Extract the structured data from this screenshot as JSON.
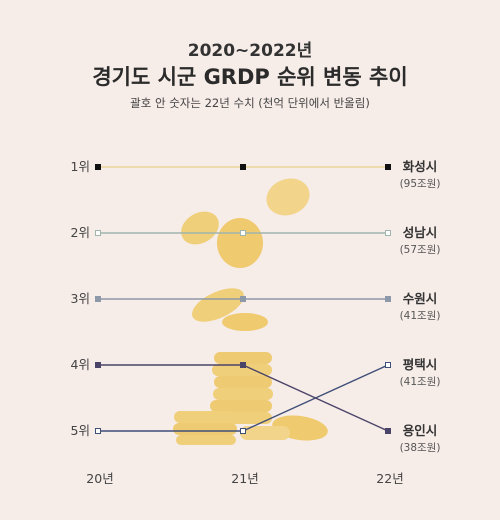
{
  "header": {
    "period": "2020~2022년",
    "title": "경기도 시군 GRDP 순위 변동 추이",
    "note": "괄호 안 숫자는 22년 수치 (천억 단위에서 반올림)"
  },
  "colors": {
    "background": "#f6ece8",
    "coin": "#f0cf7a"
  },
  "chart_data": {
    "type": "line",
    "x": [
      "20년",
      "21년",
      "22년"
    ],
    "y_categories": [
      "1위",
      "2위",
      "3위",
      "4위",
      "5위"
    ],
    "y_reversed": true,
    "ylim": [
      1,
      5
    ],
    "grid": false,
    "series": [
      {
        "name": "화성시",
        "value_2022": "(95조원)",
        "values": [
          1,
          1,
          1
        ],
        "color": "#e8d59a",
        "marker": "#111111"
      },
      {
        "name": "성남시",
        "value_2022": "(57조원)",
        "values": [
          2,
          2,
          2
        ],
        "color": "#9fb5ad",
        "marker": "#ffffff"
      },
      {
        "name": "수원시",
        "value_2022": "(41조원)",
        "values": [
          3,
          3,
          3
        ],
        "color": "#8d98a8",
        "marker": "#8d98a8"
      },
      {
        "name": "평택시",
        "value_2022": "(41조원)",
        "values": [
          5,
          5,
          4
        ],
        "color": "#3f4f78",
        "marker": "#ffffff"
      },
      {
        "name": "용인시",
        "value_2022": "(38조원)",
        "values": [
          4,
          4,
          5
        ],
        "color": "#4a4468",
        "marker": "#4a4468"
      }
    ]
  }
}
